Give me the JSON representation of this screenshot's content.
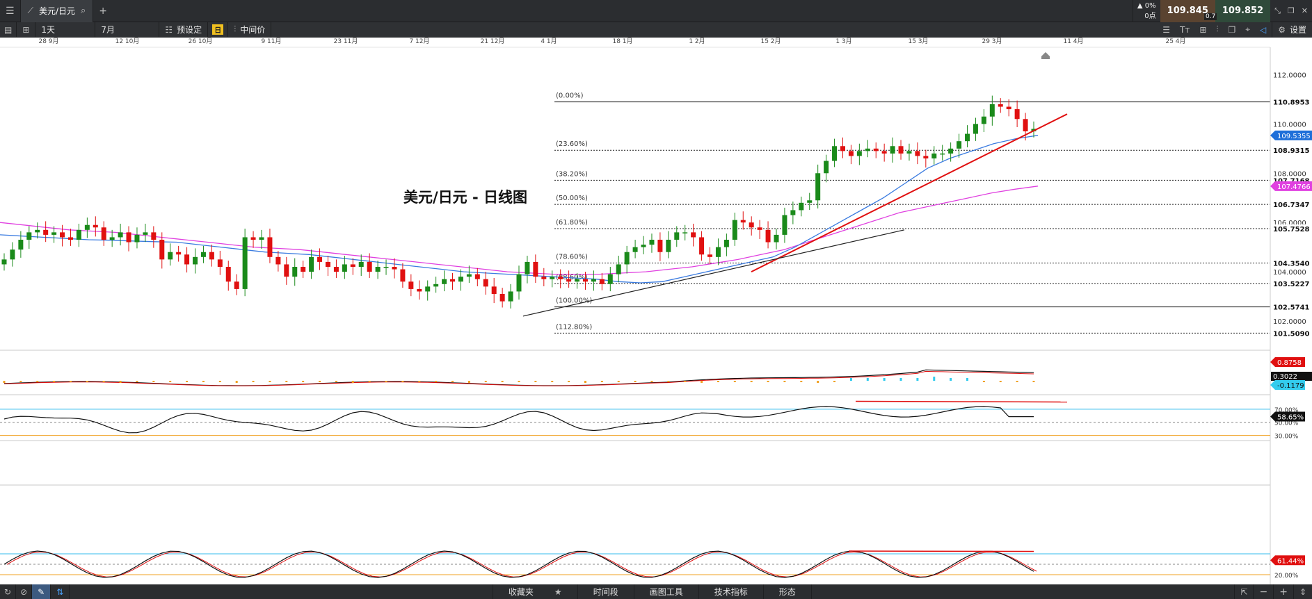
{
  "topbar": {
    "tab_label": "美元/日元",
    "change_pct": "0%",
    "change_pts": "0点",
    "bid": "109.845",
    "spread": "0.7",
    "ask": "109.852"
  },
  "toolbar": {
    "timeframe": "1天",
    "period": "7月",
    "preset": "预设定",
    "badge": "日",
    "price_mode": "中间价",
    "settings": "设置"
  },
  "bottombar": {
    "favorites": "收藏夹",
    "timeframe": "时间段",
    "drawing": "画图工具",
    "indicators": "技术指标",
    "patterns": "形态"
  },
  "colors": {
    "up": "#1a8a1a",
    "down": "#e01010",
    "ma_fast": "#3a7be0",
    "ma_slow": "#e040e0",
    "trend_red": "#e01010",
    "cyan_fill": "#7fd8f0"
  },
  "chart_data": {
    "type": "candlestick",
    "title": "美元/日元 - 日线图",
    "x_ticks": [
      "28 9月",
      "12 10月",
      "26 10月",
      "9 11月",
      "23 11月",
      "7 12月",
      "21 12月",
      "4 1月",
      "18 1月",
      "1 2月",
      "15 2月",
      "1 3月",
      "15 3月",
      "29 3月",
      "11 4月",
      "25 4月"
    ],
    "y_ticks": [
      "112.0000",
      "110.0000",
      "108.0000",
      "106.0000",
      "104.0000",
      "102.0000"
    ],
    "y_range": [
      100.9,
      113.0
    ],
    "fibonacci": [
      {
        "label": "(0.00%)",
        "price": 110.8953,
        "tag": "110.8953"
      },
      {
        "label": "(23.60%)",
        "price": 108.9315,
        "tag": "108.9315"
      },
      {
        "label": "(38.20%)",
        "price": 107.7168,
        "tag": "107.7168"
      },
      {
        "label": "(50.00%)",
        "price": 106.7347,
        "tag": "106.7347"
      },
      {
        "label": "(61.80%)",
        "price": 105.7528,
        "tag": "105.7528"
      },
      {
        "label": "(78.60%)",
        "price": 104.354,
        "tag": "104.3540"
      },
      {
        "label": "(88.60%)",
        "price": 103.5227,
        "tag": "103.5227"
      },
      {
        "label": "(100.00%)",
        "price": 102.5741,
        "tag": "102.5741"
      },
      {
        "label": "(112.80%)",
        "price": 101.509,
        "tag": "101.5090"
      }
    ],
    "price_tags": [
      {
        "value": "109.5355",
        "price": 109.5355,
        "color": "#1e6fd9"
      },
      {
        "value": "107.4766",
        "price": 107.4766,
        "color": "#e040e0"
      }
    ],
    "closes": [
      104.5,
      104.9,
      105.3,
      105.6,
      105.7,
      105.5,
      105.6,
      105.4,
      105.3,
      105.7,
      105.9,
      105.8,
      105.3,
      105.4,
      105.6,
      105.2,
      105.5,
      105.6,
      105.3,
      104.5,
      104.8,
      104.7,
      104.3,
      104.6,
      104.8,
      104.5,
      104.2,
      103.6,
      103.3,
      105.4,
      105.3,
      105.4,
      104.6,
      104.3,
      103.8,
      104.2,
      104.0,
      104.6,
      104.4,
      104.2,
      104.0,
      104.3,
      104.2,
      104.4,
      104.0,
      104.2,
      104.2,
      104.1,
      103.6,
      103.3,
      103.2,
      103.4,
      103.5,
      103.7,
      103.6,
      103.8,
      103.9,
      103.7,
      103.4,
      103.1,
      102.8,
      103.2,
      103.9,
      104.4,
      103.8,
      103.7,
      103.8,
      103.7,
      103.6,
      103.7,
      103.6,
      103.7,
      103.5,
      103.9,
      104.3,
      104.8,
      105.0,
      105.1,
      105.3,
      104.8,
      105.3,
      105.6,
      105.6,
      105.4,
      104.7,
      104.6,
      105.0,
      105.3,
      106.1,
      106.0,
      105.8,
      105.7,
      105.2,
      105.5,
      106.3,
      106.5,
      106.8,
      106.9,
      108.0,
      108.5,
      109.1,
      108.9,
      108.7,
      108.9,
      109.0,
      108.9,
      108.8,
      109.1,
      108.8,
      108.9,
      108.7,
      108.6,
      108.8,
      108.8,
      109.0,
      109.3,
      109.6,
      110.0,
      110.3,
      110.8,
      110.7,
      110.6,
      110.2,
      109.7,
      109.8
    ],
    "opens_note": "",
    "ma_fast": [
      105.5,
      105.45,
      105.4,
      105.35,
      105.3,
      105.28,
      105.25,
      105.22,
      105.2,
      105.1,
      105.0,
      104.9,
      104.8,
      104.75,
      104.7,
      104.6,
      104.5,
      104.4,
      104.3,
      104.2,
      104.1,
      104.0,
      103.95,
      103.9,
      103.85,
      103.8,
      103.75,
      103.7,
      103.6,
      103.55,
      103.6,
      103.8,
      104.0,
      104.2,
      104.4,
      104.6,
      105.0,
      105.5,
      106.0,
      106.5,
      107.0,
      107.6,
      108.2,
      108.6,
      108.9,
      109.2,
      109.4,
      109.5355
    ],
    "ma_slow": [
      106.0,
      105.9,
      105.8,
      105.7,
      105.65,
      105.6,
      105.5,
      105.4,
      105.3,
      105.2,
      105.1,
      105.0,
      104.95,
      104.9,
      104.8,
      104.7,
      104.6,
      104.5,
      104.4,
      104.3,
      104.2,
      104.1,
      104.0,
      103.95,
      103.9,
      103.9,
      103.9,
      103.95,
      104.0,
      104.1,
      104.2,
      104.35,
      104.5,
      104.7,
      104.9,
      105.2,
      105.5,
      105.8,
      106.1,
      106.4,
      106.6,
      106.8,
      107.0,
      107.2,
      107.35,
      107.4766
    ],
    "macd": {
      "tags": [
        "0.8758",
        "0.3022",
        "-0.1179"
      ]
    },
    "rsi": {
      "ticks": [
        "70.00%",
        "50.00%",
        "30.00%"
      ],
      "tag": "58.65%"
    },
    "stoch": {
      "ticks": [
        "20.00%"
      ],
      "tag": "61.44%"
    }
  }
}
